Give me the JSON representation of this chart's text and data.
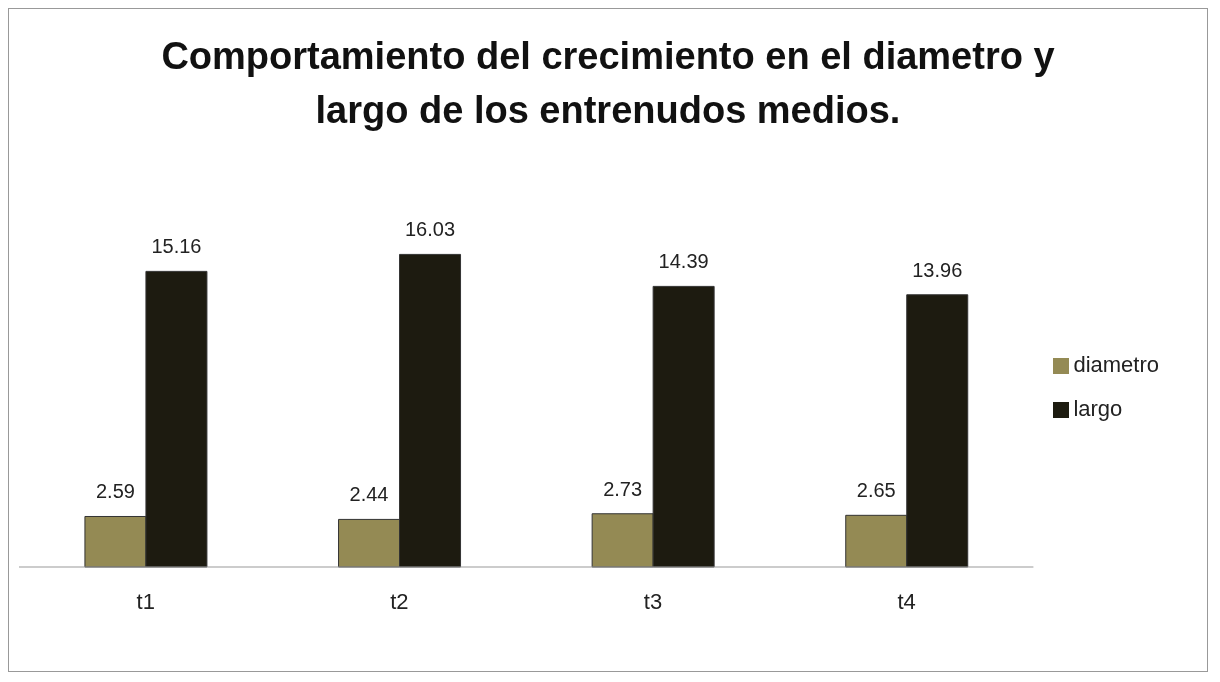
{
  "chart_data": {
    "type": "bar",
    "title": "Comportamiento del crecimiento en el diametro y largo de los entrenudos medios.",
    "categories": [
      "t1",
      "t2",
      "t3",
      "t4"
    ],
    "series": [
      {
        "name": "diametro",
        "color": "#948a54",
        "values": [
          2.59,
          2.44,
          2.73,
          2.65
        ]
      },
      {
        "name": "largo",
        "color": "#1d1b10",
        "values": [
          15.16,
          16.03,
          14.39,
          13.96
        ]
      }
    ],
    "data_labels": true,
    "legend": "right",
    "grid": false
  }
}
